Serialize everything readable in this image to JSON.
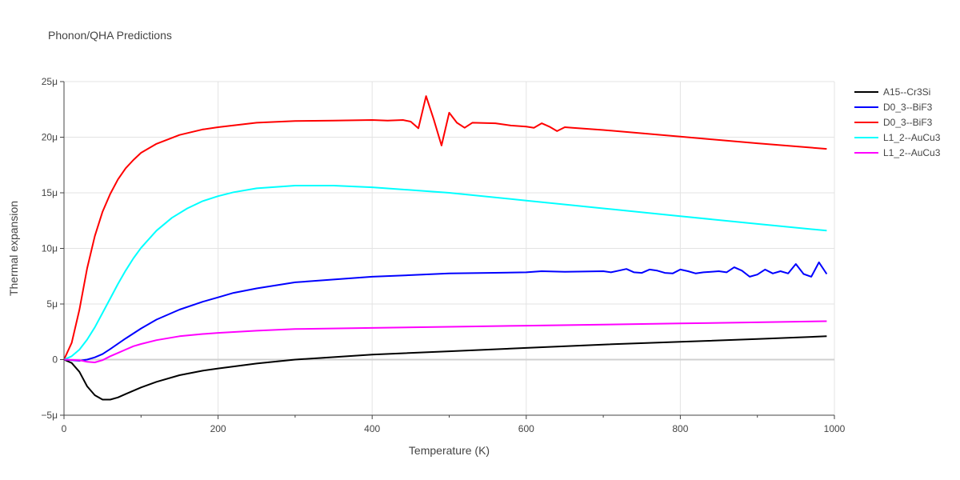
{
  "chart_data": {
    "type": "line",
    "title": "Phonon/QHA Predictions",
    "xlabel": "Temperature (K)",
    "ylabel": "Thermal expansion",
    "xlim": [
      0,
      1000
    ],
    "ylim": [
      -5,
      25
    ],
    "y_unit_suffix": "μ",
    "x_ticks": [
      0,
      200,
      400,
      600,
      800,
      1000
    ],
    "y_ticks": [
      -5,
      0,
      5,
      10,
      15,
      20,
      25
    ],
    "y_tick_labels": [
      "−5μ",
      "0",
      "5μ",
      "10μ",
      "15μ",
      "20μ",
      "25μ"
    ],
    "grid": true,
    "legend_position": "right",
    "series": [
      {
        "name": "A15--Cr3Si",
        "color": "#000000",
        "x": [
          0,
          10,
          20,
          30,
          40,
          50,
          60,
          70,
          80,
          100,
          120,
          150,
          180,
          200,
          250,
          300,
          400,
          500,
          600,
          700,
          800,
          900,
          990
        ],
        "y": [
          0,
          -0.3,
          -1.1,
          -2.4,
          -3.2,
          -3.6,
          -3.6,
          -3.4,
          -3.1,
          -2.5,
          -2.0,
          -1.4,
          -1.0,
          -0.8,
          -0.35,
          0.0,
          0.45,
          0.75,
          1.05,
          1.35,
          1.6,
          1.85,
          2.1
        ]
      },
      {
        "name": "D0_3--BiF3",
        "color": "#0000ff",
        "x": [
          0,
          20,
          30,
          40,
          50,
          60,
          80,
          100,
          120,
          150,
          180,
          200,
          220,
          250,
          300,
          350,
          400,
          450,
          500,
          550,
          600,
          620,
          650,
          700,
          710,
          720,
          730,
          740,
          750,
          760,
          770,
          780,
          790,
          800,
          810,
          820,
          830,
          840,
          850,
          860,
          870,
          880,
          890,
          900,
          910,
          920,
          930,
          940,
          950,
          960,
          970,
          980,
          990
        ],
        "y": [
          0,
          -0.1,
          0.0,
          0.2,
          0.5,
          0.95,
          1.9,
          2.8,
          3.6,
          4.5,
          5.2,
          5.6,
          6.0,
          6.4,
          6.95,
          7.2,
          7.45,
          7.6,
          7.75,
          7.8,
          7.85,
          7.95,
          7.9,
          7.95,
          7.85,
          8.0,
          8.15,
          7.85,
          7.8,
          8.1,
          8.0,
          7.8,
          7.75,
          8.1,
          7.95,
          7.75,
          7.85,
          7.9,
          7.95,
          7.85,
          8.3,
          8.0,
          7.45,
          7.65,
          8.1,
          7.75,
          7.95,
          7.75,
          8.6,
          7.7,
          7.45,
          8.75,
          7.7
        ]
      },
      {
        "name": "D0_3--BiF3",
        "color": "#ff0000",
        "x": [
          0,
          10,
          20,
          30,
          40,
          50,
          60,
          70,
          80,
          90,
          100,
          120,
          150,
          180,
          200,
          250,
          300,
          350,
          400,
          420,
          440,
          450,
          460,
          470,
          480,
          490,
          500,
          510,
          520,
          530,
          560,
          580,
          600,
          610,
          620,
          630,
          640,
          650,
          660,
          700,
          800,
          900,
          990
        ],
        "y": [
          0,
          1.5,
          4.5,
          8.2,
          11.1,
          13.3,
          14.9,
          16.2,
          17.2,
          17.95,
          18.6,
          19.4,
          20.2,
          20.7,
          20.9,
          21.3,
          21.45,
          21.5,
          21.55,
          21.5,
          21.55,
          21.4,
          20.8,
          23.7,
          21.6,
          19.25,
          22.2,
          21.3,
          20.85,
          21.3,
          21.25,
          21.05,
          20.95,
          20.85,
          21.25,
          20.95,
          20.55,
          20.9,
          20.85,
          20.65,
          20.05,
          19.45,
          18.95
        ]
      },
      {
        "name": "L1_2--AuCu3",
        "color": "#00ffff",
        "x": [
          0,
          10,
          20,
          30,
          40,
          50,
          60,
          70,
          80,
          90,
          100,
          120,
          140,
          160,
          180,
          200,
          220,
          250,
          300,
          350,
          400,
          500,
          600,
          700,
          800,
          900,
          990
        ],
        "y": [
          0,
          0.3,
          0.9,
          1.8,
          2.9,
          4.2,
          5.5,
          6.8,
          8.0,
          9.1,
          10.05,
          11.6,
          12.75,
          13.6,
          14.25,
          14.7,
          15.05,
          15.4,
          15.65,
          15.65,
          15.5,
          15.0,
          14.3,
          13.6,
          12.9,
          12.2,
          11.6
        ]
      },
      {
        "name": "L1_2--AuCu3",
        "color": "#ff00ff",
        "x": [
          0,
          20,
          30,
          40,
          50,
          60,
          70,
          80,
          90,
          100,
          120,
          150,
          180,
          200,
          250,
          300,
          400,
          500,
          600,
          700,
          800,
          900,
          990
        ],
        "y": [
          0,
          -0.05,
          -0.2,
          -0.25,
          -0.05,
          0.3,
          0.6,
          0.9,
          1.2,
          1.4,
          1.75,
          2.1,
          2.3,
          2.4,
          2.6,
          2.75,
          2.85,
          2.95,
          3.05,
          3.15,
          3.25,
          3.35,
          3.45
        ]
      }
    ]
  }
}
